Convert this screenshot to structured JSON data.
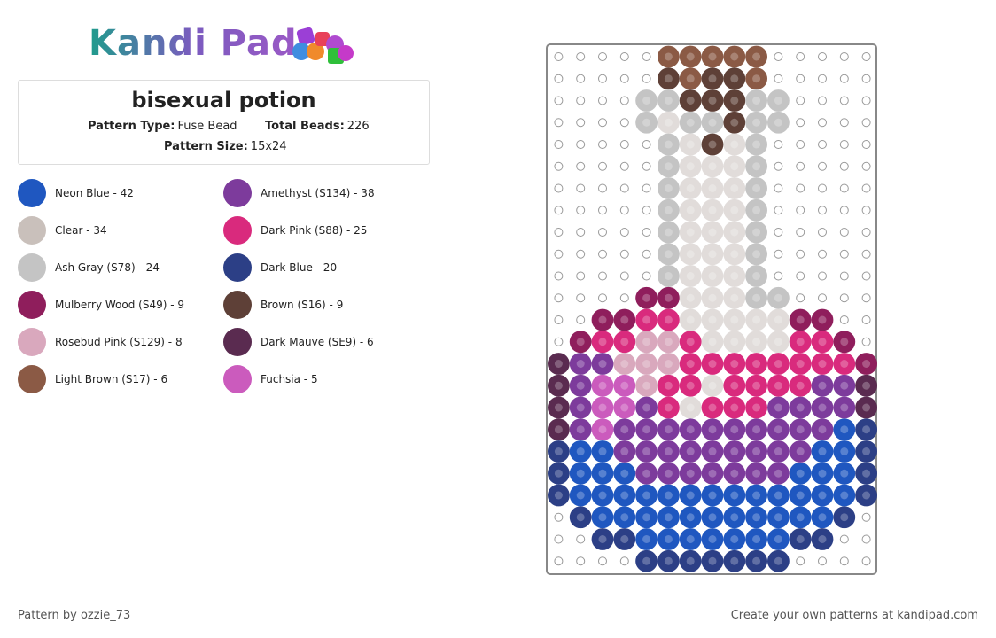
{
  "header": {
    "logo": "Kandi Pad",
    "title": "bisexual potion",
    "pattern_type_label": "Pattern Type:",
    "pattern_type": "Fuse Bead",
    "total_beads_label": "Total Beads:",
    "total_beads": 226,
    "pattern_size_label": "Pattern Size:",
    "pattern_size": "15x24"
  },
  "legend": [
    {
      "label": "Neon Blue - 42",
      "color": "#1f57c0"
    },
    {
      "label": "Amethyst (S134) - 38",
      "color": "#7d3b9c"
    },
    {
      "label": "Clear - 34",
      "color": "#c9c0bb"
    },
    {
      "label": "Dark Pink (S88) - 25",
      "color": "#d92a7d"
    },
    {
      "label": "Ash Gray (S78) - 24",
      "color": "#c4c4c4"
    },
    {
      "label": "Dark Blue - 20",
      "color": "#2c3f86"
    },
    {
      "label": "Mulberry Wood (S49) - 9",
      "color": "#8f1e5c"
    },
    {
      "label": "Brown (S16) - 9",
      "color": "#5e4037"
    },
    {
      "label": "Rosebud Pink (S129) - 8",
      "color": "#d9a8bd"
    },
    {
      "label": "Dark Mauve (SE9) - 6",
      "color": "#5a2b50"
    },
    {
      "label": "Light Brown (S17) - 6",
      "color": "#8b5a45"
    },
    {
      "label": "Fuchsia - 5",
      "color": "#cb5bbd"
    }
  ],
  "footer": {
    "credit": "Pattern by ozzie_73",
    "link": "Create your own patterns at kandipad.com"
  }
}
